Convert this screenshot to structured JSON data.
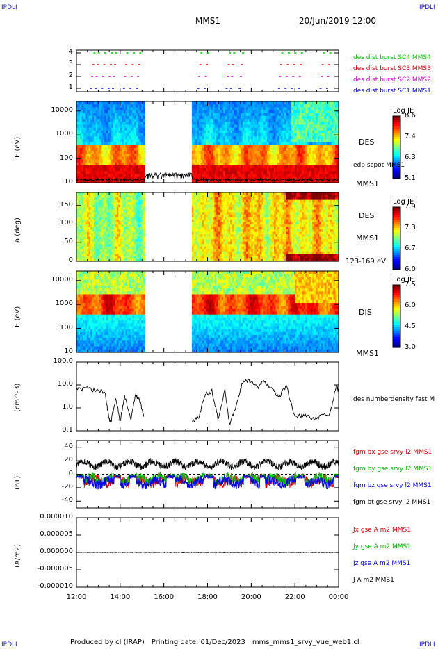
{
  "corner_labels": {
    "top_left": "IPDLI",
    "top_right": "IPDLI",
    "bottom_left": "IPDLI",
    "bottom_right": "IPDLI"
  },
  "header": {
    "spacecraft": "MMS1",
    "datetime": "20/Jun/2019 12:00"
  },
  "footer": {
    "produced_by": "Produced by cl (IRAP)",
    "printing_date": "Printing date: 01/Dec/2023",
    "filename": "mms_mms1_srvy_vue_web1.cl"
  },
  "chart_data": [
    {
      "type": "scatter",
      "panel": "burst-availability",
      "yticks": [
        "1",
        "2",
        "3",
        "4"
      ],
      "legend": [
        {
          "name": "des dist burst SC1 MMS1",
          "color": "#0000cc",
          "level": 1
        },
        {
          "name": "des dist burst SC2 MMS2",
          "color": "#cc00cc",
          "level": 2
        },
        {
          "name": "des dist burst SC3 MMS3",
          "color": "#dd0000",
          "level": 3
        },
        {
          "name": "des dist burst SC4 MMS4",
          "color": "#00cc00",
          "level": 4
        }
      ],
      "burst_hours": [
        12.7,
        12.9,
        13.2,
        13.5,
        13.7,
        14.2,
        14.5,
        14.8,
        17.6,
        17.9,
        18.9,
        19.1,
        19.5,
        21.3,
        21.6,
        21.9,
        22.2,
        23.2,
        23.5
      ]
    },
    {
      "type": "heatmap",
      "panel": "des-energy-spectrogram",
      "ylabel": "E (eV)",
      "yticks": [
        "10",
        "100",
        "1000",
        "10000"
      ],
      "label_instrument": "DES",
      "label_sc": "MMS1",
      "overlay_label": "edp scpot MMS1",
      "colorbar": {
        "title": "Log JE",
        "ticks": [
          "8.6",
          "7.4",
          "6.3",
          "5.1"
        ]
      }
    },
    {
      "type": "heatmap",
      "panel": "des-pitch-angle",
      "ylabel": "a (deg)",
      "yticks": [
        "0",
        "50",
        "100",
        "150"
      ],
      "label_instrument": "DES",
      "label_sc": "MMS1",
      "energy_range": "123-169 eV",
      "colorbar": {
        "title": "Log JE",
        "ticks": [
          "7.9",
          "7.3",
          "6.7",
          "6.0"
        ]
      }
    },
    {
      "type": "heatmap",
      "panel": "dis-energy-spectrogram",
      "ylabel": "E (eV)",
      "yticks": [
        "10",
        "100",
        "1000",
        "10000"
      ],
      "label_instrument": "DIS",
      "label_sc": "MMS1",
      "colorbar": {
        "title": "Log JE",
        "ticks": [
          "7.5",
          "6.0",
          "4.5",
          "3.0"
        ]
      }
    },
    {
      "type": "line",
      "panel": "density",
      "ylabel": "(cm^-3)",
      "yticks": [
        "0.1",
        "1.0",
        "10.0",
        "100.0"
      ],
      "series": [
        {
          "name": "des numberdensity fast M",
          "color": "#000000"
        }
      ],
      "segments": [
        {
          "x": [
            12.0,
            12.5,
            13.0,
            13.3,
            13.5,
            13.6,
            13.8,
            14.0,
            14.2,
            14.5,
            14.7,
            14.9,
            15.1
          ],
          "y": [
            6.5,
            7.0,
            5.5,
            5.0,
            0.3,
            0.3,
            3.0,
            0.25,
            3.5,
            0.3,
            4.0,
            2.0,
            0.4
          ]
        },
        {
          "x": [
            17.3,
            17.6,
            17.9,
            18.2,
            18.5,
            18.8,
            19.0,
            19.3,
            19.6,
            19.9,
            20.3,
            20.6,
            21.0,
            21.3,
            21.6,
            22.0,
            22.4,
            22.8,
            23.2,
            23.6,
            23.9,
            24.0
          ],
          "y": [
            0.25,
            0.4,
            4.0,
            5.5,
            0.3,
            6.5,
            0.2,
            1.0,
            14.0,
            16.0,
            8.0,
            15.0,
            6.0,
            3.0,
            10.0,
            0.4,
            0.5,
            0.35,
            0.45,
            0.5,
            10.0,
            5.0
          ]
        }
      ]
    },
    {
      "type": "line",
      "panel": "magnetic-field",
      "ylabel": "(nT)",
      "yticks": [
        "-40",
        "-20",
        "0",
        "20",
        "40"
      ],
      "series": [
        {
          "name": "fgm bx gse srvy l2 MMS1",
          "color": "#dd0000",
          "base": -10
        },
        {
          "name": "fgm by gse srvy l2 MMS1",
          "color": "#00bb00",
          "base": -7
        },
        {
          "name": "fgm bz gse srvy l2 MMS1",
          "color": "#0000ee",
          "base": -12
        },
        {
          "name": "fgm bt gse srvy l2 MMS1",
          "color": "#000000",
          "base": 15
        }
      ]
    },
    {
      "type": "line",
      "panel": "current-density",
      "ylabel": "(A/m2)",
      "yticks": [
        "-0.000010",
        "-0.000005",
        "0.000000",
        "0.000005",
        "0.000010"
      ],
      "series": [
        {
          "name": "Jx gse A m2 MMS1",
          "color": "#dd0000"
        },
        {
          "name": "Jy gse A m2 MMS1",
          "color": "#00bb00"
        },
        {
          "name": "Jz gse A m2 MMS1",
          "color": "#0000ee"
        },
        {
          "name": "J A m2 MMS1",
          "color": "#000000"
        }
      ]
    }
  ],
  "xaxis": {
    "ticks": [
      "12:00",
      "14:00",
      "16:00",
      "18:00",
      "20:00",
      "22:00",
      "00:00"
    ]
  }
}
